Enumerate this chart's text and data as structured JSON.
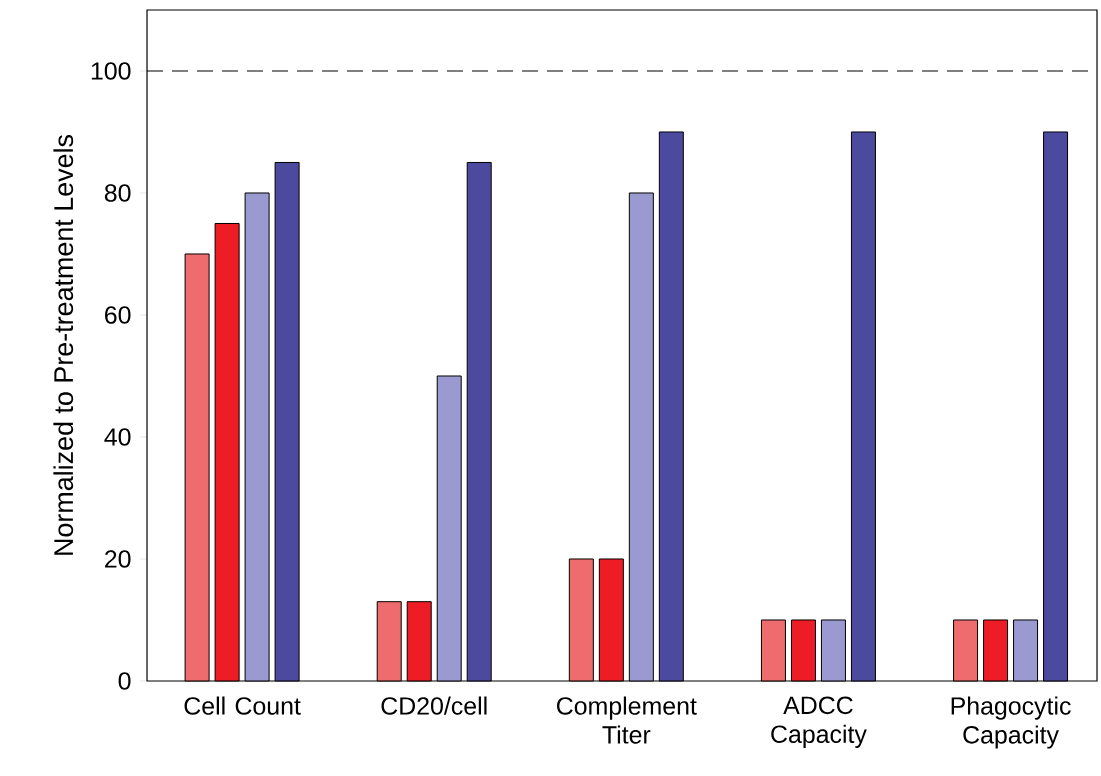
{
  "chart_data": {
    "type": "bar",
    "ylabel": "Normalized to Pre-treatment Levels",
    "categories": [
      "Cell Count",
      "CD20/cell",
      "Complement Titer",
      "ADCC Capacity",
      "Phagocytic Capacity"
    ],
    "series": [
      {
        "color": "#ee6b6e",
        "values": [
          70,
          13,
          20,
          10,
          10
        ]
      },
      {
        "color": "#ee1c25",
        "values": [
          75,
          13,
          20,
          10,
          10
        ]
      },
      {
        "color": "#9a9ad0",
        "values": [
          80,
          50,
          80,
          10,
          10
        ]
      },
      {
        "color": "#4b4a9e",
        "values": [
          85,
          85,
          90,
          90,
          90
        ]
      }
    ],
    "ylim": [
      0,
      110
    ],
    "yticks": [
      0,
      20,
      40,
      60,
      80,
      100
    ],
    "ref_lines": [
      {
        "axis": "y",
        "value": 100,
        "line_style": "dashed"
      }
    ]
  }
}
